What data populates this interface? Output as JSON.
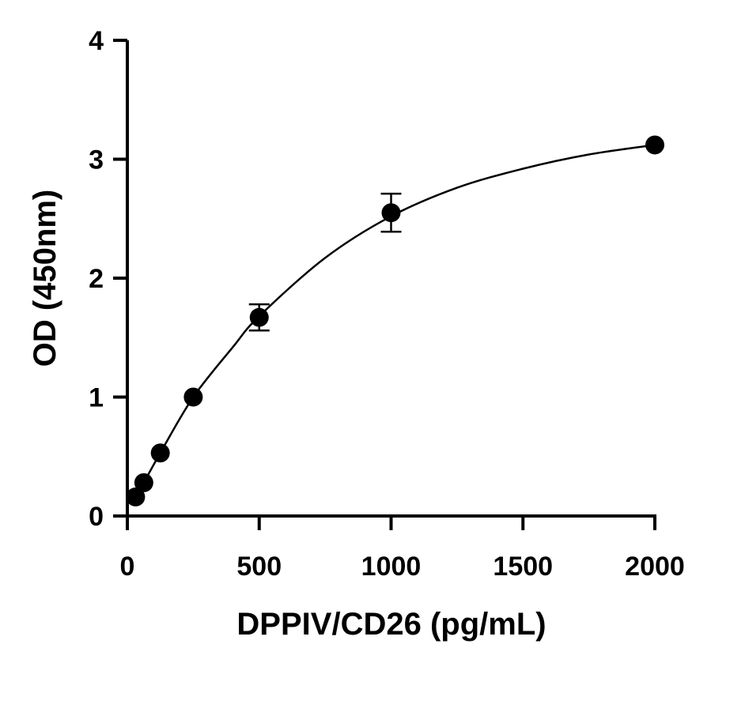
{
  "chart_data": {
    "type": "scatter",
    "title": "",
    "xlabel": "DPPIV/CD26 (pg/mL)",
    "ylabel": "OD (450nm)",
    "xlim": [
      0,
      2000
    ],
    "ylim": [
      0,
      4
    ],
    "x_ticks": [
      "0",
      "500",
      "1000",
      "1500",
      "2000"
    ],
    "y_ticks": [
      "0",
      "1",
      "2",
      "3",
      "4"
    ],
    "grid": false,
    "legend": "none",
    "series": [
      {
        "marker_color": "#000000",
        "points": [
          {
            "x": 31.25,
            "y": 0.16
          },
          {
            "x": 62.5,
            "y": 0.28
          },
          {
            "x": 125,
            "y": 0.53
          },
          {
            "x": 250,
            "y": 1.0
          },
          {
            "x": 500,
            "y": 1.67,
            "err": 0.11
          },
          {
            "x": 1000,
            "y": 2.55,
            "err": 0.16
          },
          {
            "x": 2000,
            "y": 3.12
          }
        ]
      }
    ],
    "fit_curve": {
      "color": "#000000",
      "points": [
        {
          "x": 20,
          "y": 0.1
        },
        {
          "x": 62.5,
          "y": 0.28
        },
        {
          "x": 125,
          "y": 0.53
        },
        {
          "x": 250,
          "y": 1.0
        },
        {
          "x": 400,
          "y": 1.42
        },
        {
          "x": 500,
          "y": 1.68
        },
        {
          "x": 750,
          "y": 2.17
        },
        {
          "x": 1000,
          "y": 2.52
        },
        {
          "x": 1250,
          "y": 2.76
        },
        {
          "x": 1500,
          "y": 2.92
        },
        {
          "x": 1750,
          "y": 3.04
        },
        {
          "x": 2000,
          "y": 3.12
        }
      ]
    }
  }
}
